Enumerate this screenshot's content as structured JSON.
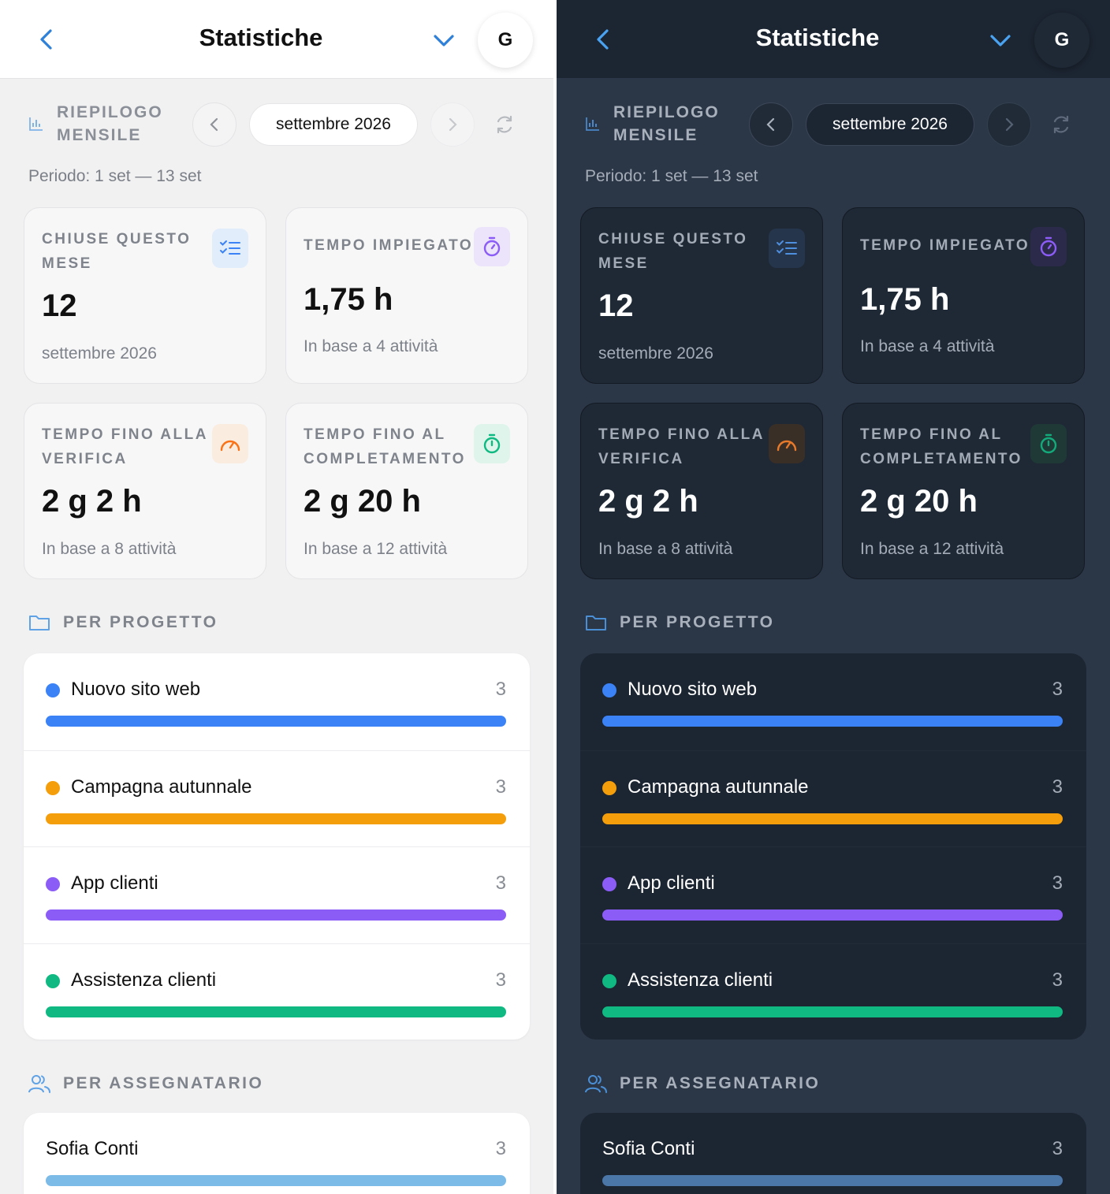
{
  "header": {
    "title": "Statistiche",
    "avatar_initial": "G"
  },
  "summary": {
    "label": "RIEPILOGO MENSILE",
    "month": "settembre 2026",
    "period": "Periodo: 1 set — 13 set"
  },
  "cards": [
    {
      "label": "CHIUSE QUESTO MESE",
      "value": "12",
      "sub": "settembre 2026",
      "icon": "checklist-icon",
      "color": "#3b82f6"
    },
    {
      "label": "TEMPO IMPIEGATO",
      "value": "1,75 h",
      "sub": "In base a 4 attività",
      "icon": "stopwatch-icon",
      "color": "#8b5cf6"
    },
    {
      "label": "TEMPO FINO ALLA VERIFICA",
      "value": "2 g 2 h",
      "sub": "In base a 8 attività",
      "icon": "gauge-icon",
      "color": "#f97316"
    },
    {
      "label": "TEMPO FINO AL COMPLETAMENTO",
      "value": "2 g 20 h",
      "sub": "In base a 12 attività",
      "icon": "timer-icon",
      "color": "#10b981"
    }
  ],
  "per_project": {
    "label": "PER PROGETTO",
    "items": [
      {
        "name": "Nuovo sito web",
        "count": "3",
        "color": "#3b82f6",
        "fraction": 1.0
      },
      {
        "name": "Campagna autunnale",
        "count": "3",
        "color": "#f59e0b",
        "fraction": 1.0
      },
      {
        "name": "App clienti",
        "count": "3",
        "color": "#8b5cf6",
        "fraction": 1.0
      },
      {
        "name": "Assistenza clienti",
        "count": "3",
        "color": "#10b981",
        "fraction": 1.0
      }
    ]
  },
  "per_assignee": {
    "label": "PER ASSEGNATARIO",
    "items": [
      {
        "name": "Sofia Conti",
        "count": "3",
        "fraction": 1.0
      }
    ]
  },
  "theme_colors": {
    "accent_light": "#2f80d8",
    "accent_dark": "#4aa3f0",
    "assignee_bar_light": "#7cbbe8",
    "assignee_bar_dark": "#4b76a8"
  }
}
